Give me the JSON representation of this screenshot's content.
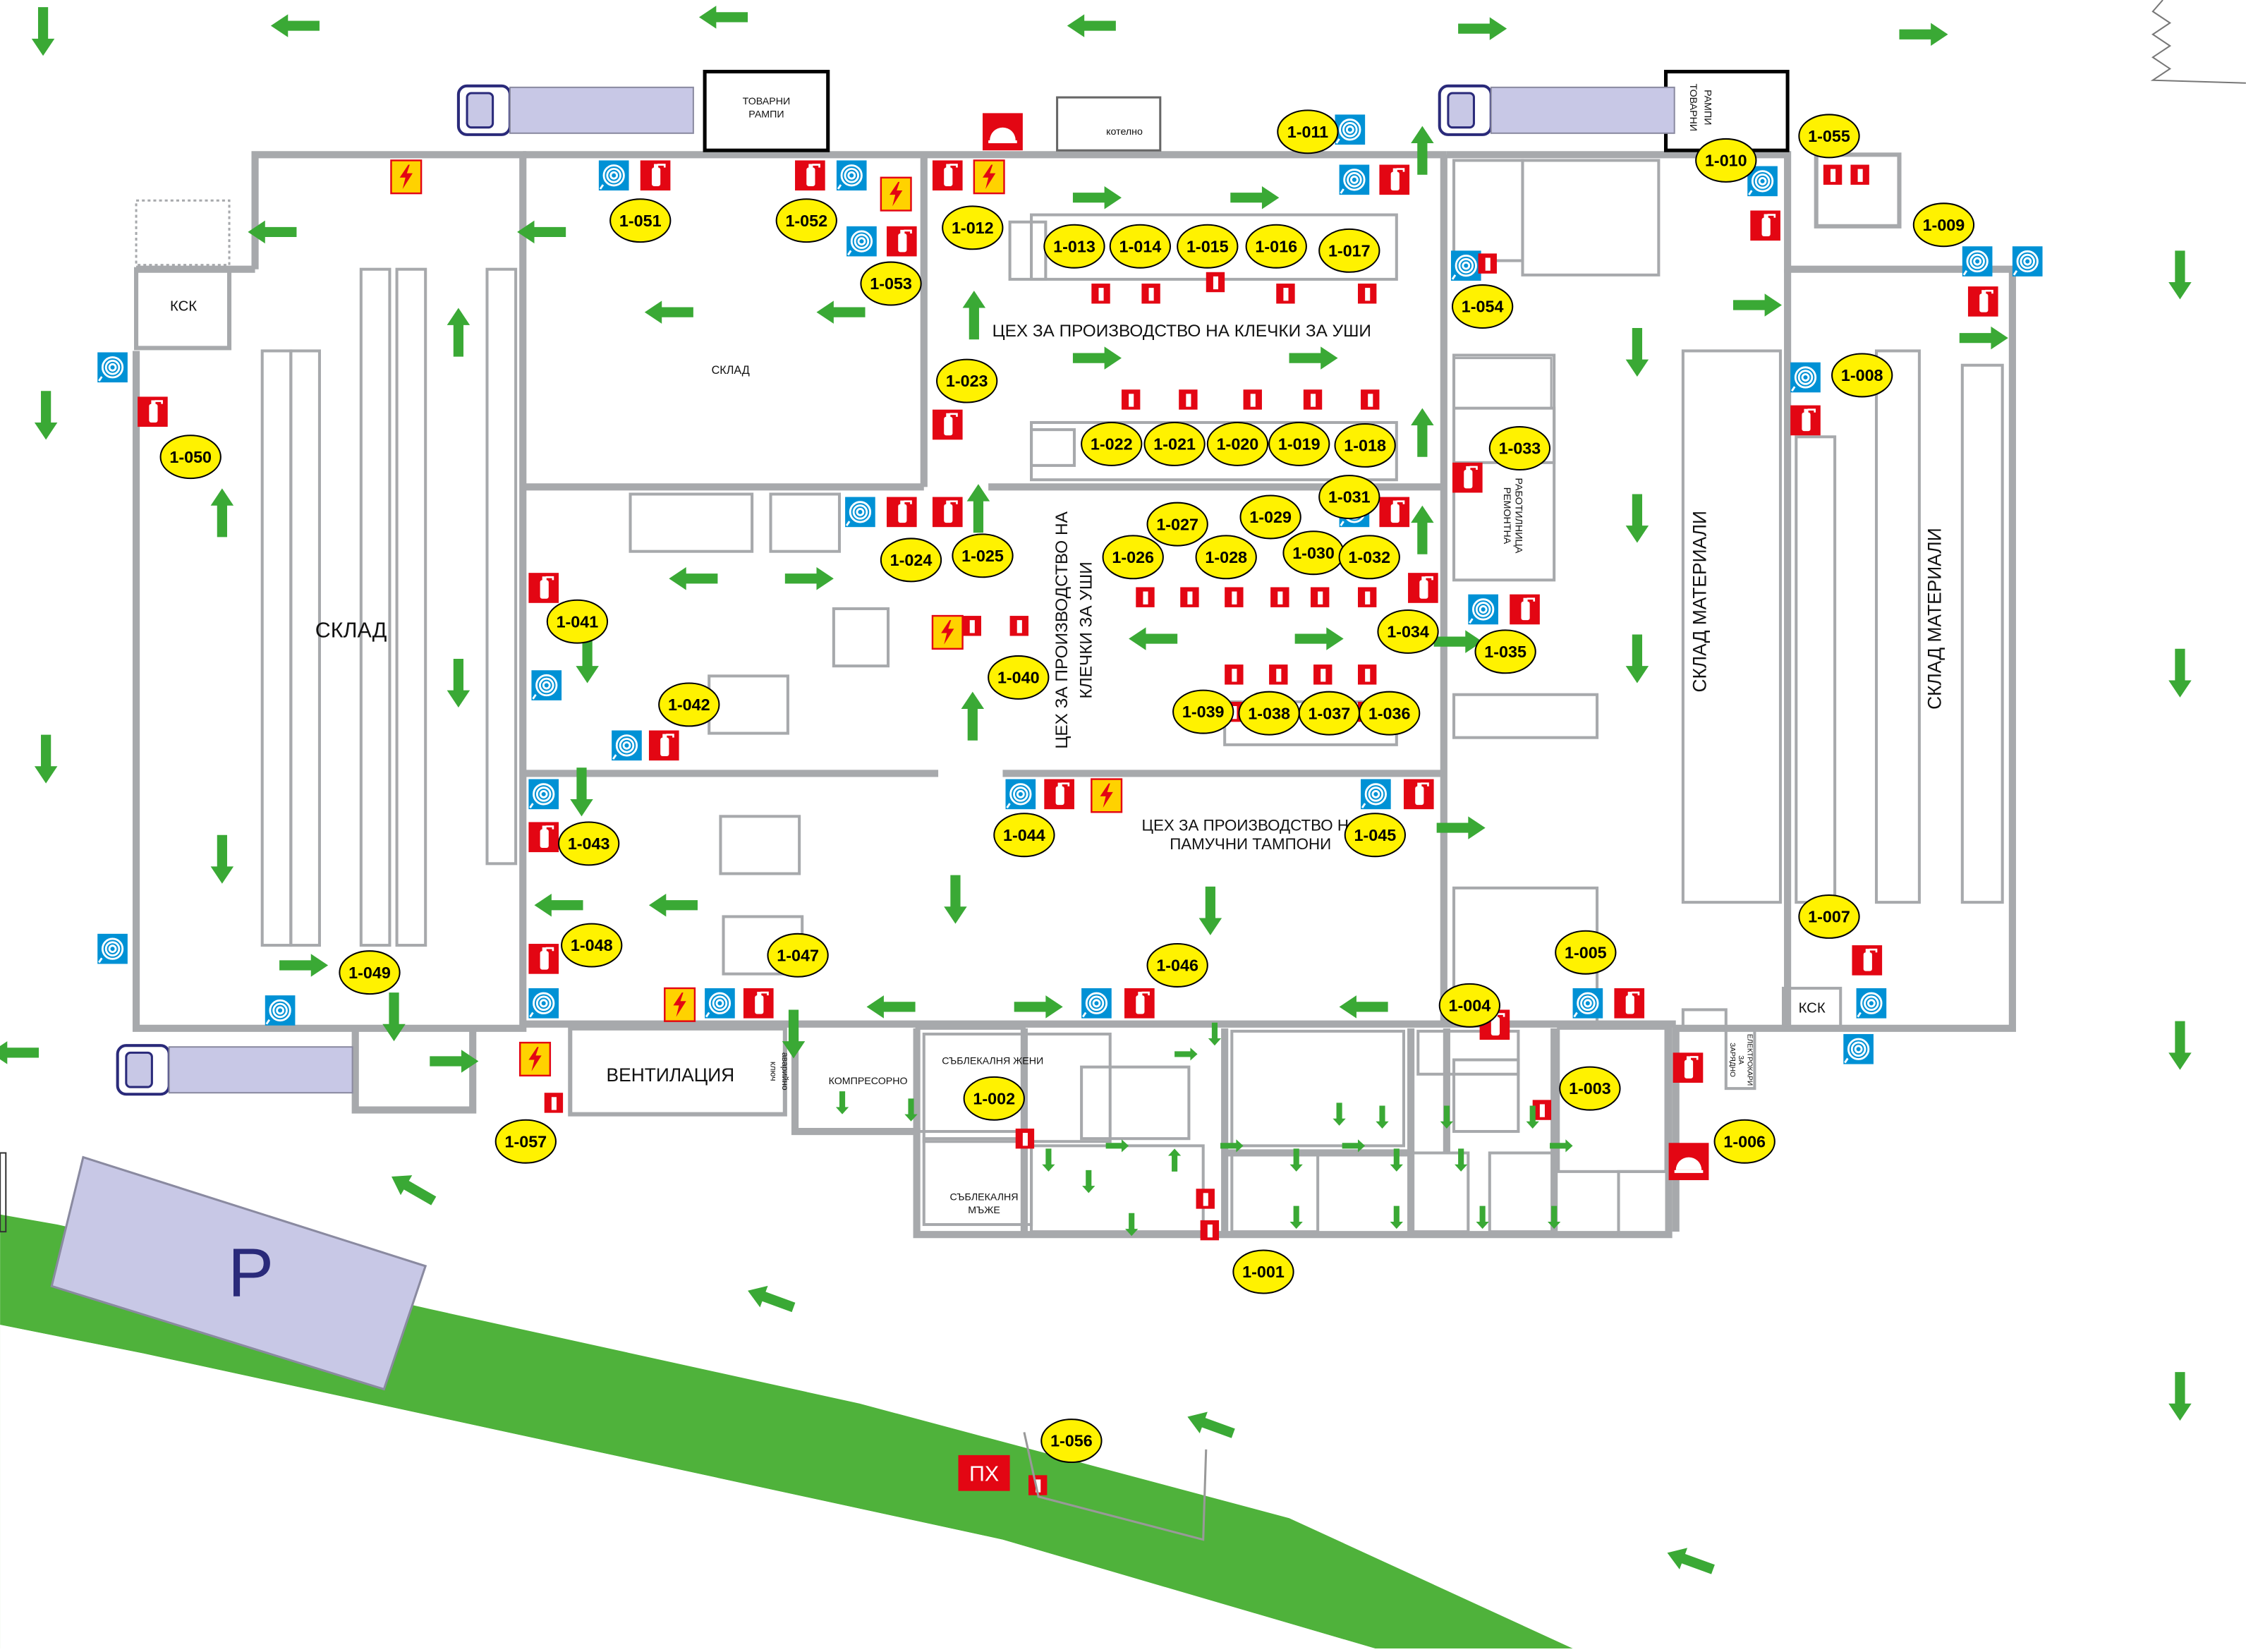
{
  "plan": {
    "areas": {
      "warehouse_left": "СКЛАД",
      "warehouse_top": "СКЛАД",
      "workshop_top": "ЦЕХ ЗА ПРОИЗВОДСТВО НА  КЛЕЧКИ ЗА УШИ",
      "workshop_mid_l1": "ЦЕХ ЗА ПРОИЗВОДСТВО НА",
      "workshop_mid_l2": "КЛЕЧКИ ЗА УШИ",
      "workshop_cotton_l1": "ЦЕХ ЗА ПРОИЗВОДСТВО НА",
      "workshop_cotton_l2": "ПАМУЧНИ ТАМПОНИ",
      "materials_1": "СКЛАД МАТЕРИАЛИ",
      "materials_2": "СКЛАД МАТЕРИАЛИ",
      "ventilation": "ВЕНТИЛАЦИЯ",
      "ksk_left": "КСК",
      "ksk_right": "КСК",
      "ramps_left_l1": "ТОВАРНИ",
      "ramps_left_l2": "РАМПИ",
      "ramps_right_l1": "ТОВАРНИ",
      "ramps_right_l2": "РАМПИ",
      "boiler": "котелно",
      "repair_l1": "РЕМОНТНА",
      "repair_l2": "РАБОТИЛНИЦА",
      "compressor": "КОМПРЕСОРНО",
      "changing_women": "СЪБЛЕКАЛНЯ ЖЕНИ",
      "changing_men_l1": "СЪБЛЕКАЛНЯ",
      "changing_men_l2": "МЪЖЕ",
      "emergency_l1": "аварийно",
      "emergency_l2": "ключ",
      "charging_l1": "ЗАРЯДНО",
      "charging_l2": "ЗА",
      "charging_l3": "ЕЛЕКТРОКАРИ",
      "parking": "P",
      "hydrant": "ПХ"
    },
    "markers": [
      {
        "id": "1-001"
      },
      {
        "id": "1-002"
      },
      {
        "id": "1-003"
      },
      {
        "id": "1-004"
      },
      {
        "id": "1-005"
      },
      {
        "id": "1-006"
      },
      {
        "id": "1-007"
      },
      {
        "id": "1-008"
      },
      {
        "id": "1-009"
      },
      {
        "id": "1-010"
      },
      {
        "id": "1-011"
      },
      {
        "id": "1-012"
      },
      {
        "id": "1-013"
      },
      {
        "id": "1-014"
      },
      {
        "id": "1-015"
      },
      {
        "id": "1-016"
      },
      {
        "id": "1-017"
      },
      {
        "id": "1-018"
      },
      {
        "id": "1-019"
      },
      {
        "id": "1-020"
      },
      {
        "id": "1-021"
      },
      {
        "id": "1-022"
      },
      {
        "id": "1-023"
      },
      {
        "id": "1-024"
      },
      {
        "id": "1-025"
      },
      {
        "id": "1-026"
      },
      {
        "id": "1-027"
      },
      {
        "id": "1-028"
      },
      {
        "id": "1-029"
      },
      {
        "id": "1-030"
      },
      {
        "id": "1-031"
      },
      {
        "id": "1-032"
      },
      {
        "id": "1-033"
      },
      {
        "id": "1-034"
      },
      {
        "id": "1-035"
      },
      {
        "id": "1-036"
      },
      {
        "id": "1-037"
      },
      {
        "id": "1-038"
      },
      {
        "id": "1-039"
      },
      {
        "id": "1-040"
      },
      {
        "id": "1-041"
      },
      {
        "id": "1-042"
      },
      {
        "id": "1-043"
      },
      {
        "id": "1-044"
      },
      {
        "id": "1-045"
      },
      {
        "id": "1-046"
      },
      {
        "id": "1-047"
      },
      {
        "id": "1-048"
      },
      {
        "id": "1-049"
      },
      {
        "id": "1-050"
      },
      {
        "id": "1-051"
      },
      {
        "id": "1-052"
      },
      {
        "id": "1-053"
      },
      {
        "id": "1-054"
      },
      {
        "id": "1-055"
      },
      {
        "id": "1-056"
      },
      {
        "id": "1-057"
      }
    ],
    "colors": {
      "marker_fill": "#fff200",
      "extinguisher_red": "#e30613",
      "hose_blue": "#0091d5",
      "arrow_green": "#3aa935",
      "grass_green": "#4fb23b",
      "parking_fill": "#c8c8e6",
      "parking_letter": "#2a2a7a",
      "wall_gray": "#a7a9ac",
      "electric_yellow": "#ffd200"
    },
    "icons": [
      "fire-extinguisher-icon",
      "fire-hose-icon",
      "high-voltage-icon",
      "fire-alarm-icon",
      "exit-arrow-icon",
      "truck-icon"
    ]
  }
}
